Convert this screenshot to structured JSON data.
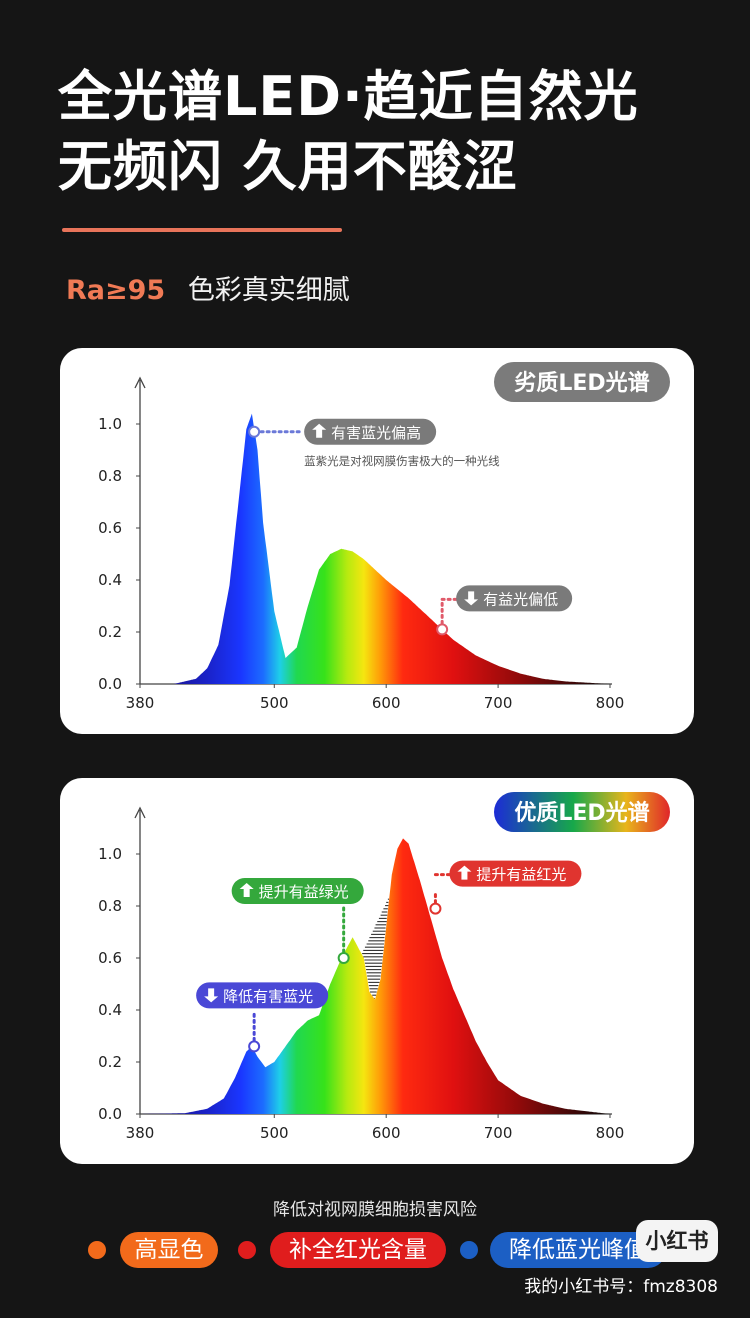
{
  "headline": {
    "line1": "全光谱LED·趋近自然光",
    "line2": "无频闪 久用不酸涩"
  },
  "feature": {
    "ra": "Ra≥95",
    "text": "色彩真实细腻"
  },
  "footer": {
    "caption": "降低对视网膜细胞损害风险",
    "pills": [
      {
        "label": "高显色",
        "color": "#f26a1b"
      },
      {
        "label": "补全红光含量",
        "color": "#e01d1d"
      },
      {
        "label": "降低蓝光峰值",
        "color": "#1c5fc4"
      }
    ]
  },
  "watermark": {
    "badge": "小红书",
    "text": "我的小红书号：fmz8308"
  },
  "chart_data": [
    {
      "type": "area",
      "badge": "劣质LED光谱",
      "x_ticks": [
        380,
        500,
        600,
        700,
        800
      ],
      "y_ticks": [
        "0.0",
        "0.2",
        "0.4",
        "0.6",
        "0.8",
        "1.0"
      ],
      "xlim": [
        380,
        800
      ],
      "ylim": [
        0,
        1.1
      ],
      "series": [
        {
          "x": [
            380,
            410,
            430,
            440,
            450,
            460,
            470,
            475,
            480,
            485,
            490,
            500,
            510,
            520,
            530,
            540,
            550,
            560,
            570,
            580,
            590,
            600,
            620,
            640,
            660,
            680,
            700,
            720,
            740,
            760,
            780,
            800
          ],
          "values": [
            0,
            0,
            0.02,
            0.06,
            0.15,
            0.38,
            0.78,
            0.98,
            1.04,
            0.9,
            0.62,
            0.28,
            0.1,
            0.14,
            0.3,
            0.44,
            0.5,
            0.52,
            0.51,
            0.48,
            0.44,
            0.4,
            0.33,
            0.25,
            0.17,
            0.11,
            0.07,
            0.04,
            0.02,
            0.01,
            0.005,
            0
          ]
        }
      ],
      "annotations": [
        {
          "x": 482,
          "y": 0.97,
          "color": "#6b79d8",
          "label": "有害蓝光偏高",
          "note": "蓝紫光是对视网膜伤害极大的一种光线",
          "arrow": "up"
        },
        {
          "x": 650,
          "y": 0.21,
          "color": "#e05a6a",
          "label": "有益光偏低",
          "note": "",
          "arrow": "down"
        }
      ]
    },
    {
      "type": "area",
      "badge": "优质LED光谱",
      "x_ticks": [
        380,
        500,
        600,
        700,
        800
      ],
      "y_ticks": [
        "0.0",
        "0.2",
        "0.4",
        "0.6",
        "0.8",
        "1.0"
      ],
      "xlim": [
        380,
        800
      ],
      "ylim": [
        0,
        1.1
      ],
      "series": [
        {
          "x": [
            380,
            420,
            440,
            455,
            465,
            475,
            480,
            485,
            492,
            500,
            510,
            520,
            530,
            540,
            550,
            560,
            570,
            580,
            585,
            590,
            595,
            600,
            605,
            610,
            615,
            620,
            630,
            640,
            650,
            660,
            670,
            680,
            690,
            700,
            720,
            740,
            760,
            780,
            800
          ],
          "values": [
            0,
            0.003,
            0.02,
            0.06,
            0.14,
            0.24,
            0.26,
            0.22,
            0.18,
            0.2,
            0.26,
            0.32,
            0.36,
            0.38,
            0.5,
            0.6,
            0.68,
            0.6,
            0.47,
            0.44,
            0.52,
            0.72,
            0.92,
            1.02,
            1.06,
            1.04,
            0.9,
            0.75,
            0.6,
            0.48,
            0.38,
            0.28,
            0.2,
            0.13,
            0.07,
            0.04,
            0.02,
            0.01,
            0
          ]
        }
      ],
      "annotations": [
        {
          "x": 482,
          "y": 0.26,
          "color": "#4a48d6",
          "label": "降低有害蓝光",
          "arrow": "down"
        },
        {
          "x": 562,
          "y": 0.6,
          "color": "#34a83c",
          "label": "提升有益绿光",
          "arrow": "up"
        },
        {
          "x": 644,
          "y": 0.79,
          "color": "#e0342f",
          "label": "提升有益红光",
          "arrow": "up"
        }
      ]
    }
  ]
}
